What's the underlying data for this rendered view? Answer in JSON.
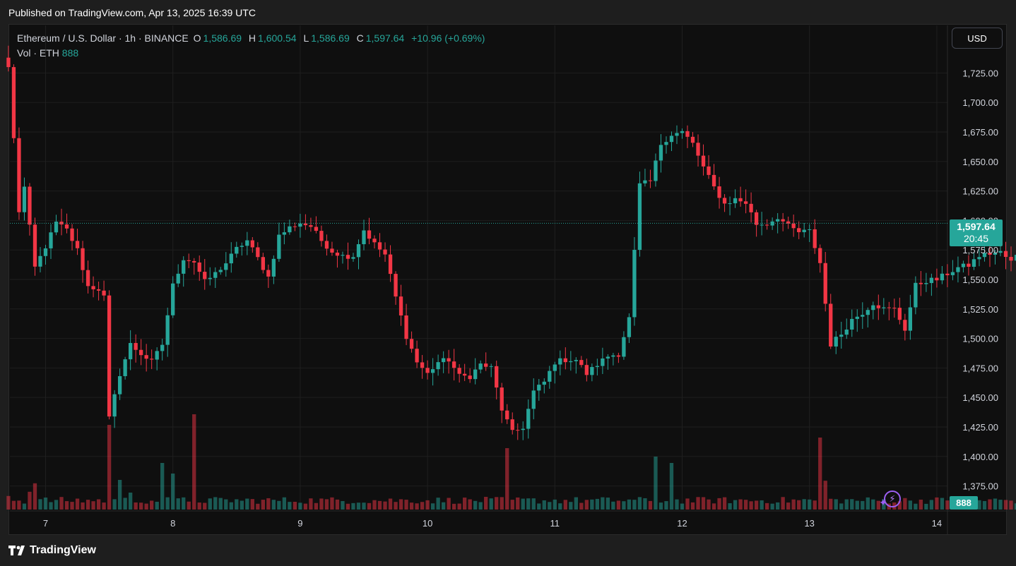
{
  "header": {
    "published": "Published on TradingView.com, Apr 13, 2025 16:39 UTC"
  },
  "legend": {
    "symbol": "Ethereum / U.S. Dollar · 1h · BINANCE",
    "o_label": "O",
    "o_value": "1,586.69",
    "h_label": "H",
    "h_value": "1,600.54",
    "l_label": "L",
    "l_value": "1,586.69",
    "c_label": "C",
    "c_value": "1,597.64",
    "change": "+10.96 (+0.69%)",
    "vol_label": "Vol · ETH",
    "vol_value": "888"
  },
  "currency_button": "USD",
  "price_badge": {
    "price": "1,597.64",
    "countdown": "20:45"
  },
  "volume_badge": "888",
  "footer": {
    "brand": "TradingView"
  },
  "colors": {
    "up": "#26a69a",
    "down": "#f23645",
    "bg": "#0f0f0f",
    "grid": "#1f1f1f"
  },
  "chart_data": {
    "type": "candlestick",
    "y_ticks": [
      "1,725.00",
      "1,700.00",
      "1,675.00",
      "1,650.00",
      "1,625.00",
      "1,600.00",
      "1,575.00",
      "1,550.00",
      "1,525.00",
      "1,500.00",
      "1,475.00",
      "1,450.00",
      "1,425.00",
      "1,400.00",
      "1,375.00"
    ],
    "x_ticks": [
      "7",
      "8",
      "9",
      "10",
      "11",
      "12",
      "13",
      "14"
    ],
    "ylim": [
      1355,
      1745
    ],
    "last_price": 1597.64,
    "anchors": [
      [
        0,
        1730
      ],
      [
        2,
        1608
      ],
      [
        3,
        1628
      ],
      [
        5,
        1560
      ],
      [
        7,
        1578
      ],
      [
        9,
        1598
      ],
      [
        11,
        1592
      ],
      [
        13,
        1575
      ],
      [
        15,
        1544
      ],
      [
        17,
        1542
      ],
      [
        18,
        1535
      ],
      [
        19,
        1432
      ],
      [
        21,
        1470
      ],
      [
        23,
        1495
      ],
      [
        25,
        1487
      ],
      [
        27,
        1480
      ],
      [
        29,
        1495
      ],
      [
        31,
        1545
      ],
      [
        33,
        1568
      ],
      [
        35,
        1565
      ],
      [
        37,
        1548
      ],
      [
        39,
        1555
      ],
      [
        41,
        1564
      ],
      [
        43,
        1576
      ],
      [
        45,
        1583
      ],
      [
        47,
        1568
      ],
      [
        49,
        1552
      ],
      [
        51,
        1587
      ],
      [
        53,
        1594
      ],
      [
        55,
        1598
      ],
      [
        57,
        1595
      ],
      [
        59,
        1583
      ],
      [
        61,
        1574
      ],
      [
        63,
        1570
      ],
      [
        65,
        1570
      ],
      [
        67,
        1592
      ],
      [
        69,
        1580
      ],
      [
        71,
        1571
      ],
      [
        73,
        1535
      ],
      [
        75,
        1502
      ],
      [
        77,
        1480
      ],
      [
        79,
        1470
      ],
      [
        81,
        1480
      ],
      [
        83,
        1482
      ],
      [
        85,
        1468
      ],
      [
        87,
        1468
      ],
      [
        89,
        1478
      ],
      [
        91,
        1475
      ],
      [
        93,
        1440
      ],
      [
        95,
        1420
      ],
      [
        97,
        1425
      ],
      [
        99,
        1455
      ],
      [
        101,
        1463
      ],
      [
        103,
        1480
      ],
      [
        105,
        1482
      ],
      [
        107,
        1482
      ],
      [
        109,
        1470
      ],
      [
        111,
        1478
      ],
      [
        113,
        1485
      ],
      [
        115,
        1487
      ],
      [
        117,
        1517
      ],
      [
        119,
        1630
      ],
      [
        121,
        1633
      ],
      [
        123,
        1665
      ],
      [
        125,
        1673
      ],
      [
        127,
        1675
      ],
      [
        129,
        1665
      ],
      [
        131,
        1645
      ],
      [
        133,
        1628
      ],
      [
        135,
        1614
      ],
      [
        137,
        1618
      ],
      [
        139,
        1615
      ],
      [
        141,
        1597
      ],
      [
        143,
        1597
      ],
      [
        145,
        1603
      ],
      [
        147,
        1595
      ],
      [
        149,
        1590
      ],
      [
        151,
        1591
      ],
      [
        153,
        1564
      ],
      [
        155,
        1495
      ],
      [
        157,
        1504
      ],
      [
        159,
        1516
      ],
      [
        161,
        1522
      ],
      [
        163,
        1530
      ],
      [
        165,
        1525
      ],
      [
        167,
        1525
      ],
      [
        169,
        1508
      ],
      [
        171,
        1545
      ],
      [
        173,
        1549
      ],
      [
        175,
        1550
      ],
      [
        177,
        1555
      ],
      [
        179,
        1560
      ],
      [
        181,
        1562
      ],
      [
        183,
        1570
      ],
      [
        185,
        1572
      ],
      [
        187,
        1573
      ],
      [
        189,
        1565
      ],
      [
        191,
        1575
      ],
      [
        193,
        1575
      ],
      [
        195,
        1575
      ],
      [
        197,
        1583
      ],
      [
        199,
        1570
      ],
      [
        201,
        1568
      ],
      [
        203,
        1577
      ],
      [
        205,
        1573
      ],
      [
        207,
        1577
      ],
      [
        209,
        1569
      ],
      [
        211,
        1565
      ],
      [
        213,
        1553
      ],
      [
        215,
        1548
      ],
      [
        217,
        1568
      ],
      [
        219,
        1575
      ],
      [
        221,
        1585
      ],
      [
        223,
        1592
      ],
      [
        225,
        1600
      ],
      [
        227,
        1596
      ],
      [
        229,
        1600
      ],
      [
        231,
        1611
      ],
      [
        233,
        1640
      ],
      [
        235,
        1650
      ],
      [
        237,
        1638
      ],
      [
        239,
        1638
      ],
      [
        241,
        1648
      ],
      [
        243,
        1650
      ],
      [
        245,
        1651
      ],
      [
        247,
        1648
      ],
      [
        249,
        1640
      ],
      [
        251,
        1618
      ],
      [
        253,
        1620
      ],
      [
        255,
        1608
      ],
      [
        257,
        1612
      ],
      [
        259,
        1618
      ],
      [
        261,
        1620
      ],
      [
        263,
        1618
      ],
      [
        265,
        1600
      ],
      [
        267,
        1578
      ],
      [
        269,
        1590
      ],
      [
        271,
        1596
      ],
      [
        272,
        1597.64
      ]
    ],
    "volume_spikes": [
      [
        0,
        32
      ],
      [
        4,
        42
      ],
      [
        5,
        62
      ],
      [
        19,
        200
      ],
      [
        21,
        70
      ],
      [
        23,
        40
      ],
      [
        29,
        110
      ],
      [
        31,
        85
      ],
      [
        35,
        225
      ],
      [
        94,
        145
      ],
      [
        122,
        125
      ],
      [
        125,
        110
      ],
      [
        153,
        170
      ],
      [
        154,
        68
      ],
      [
        230,
        22
      ],
      [
        233,
        50
      ],
      [
        234,
        50
      ],
      [
        270,
        30
      ]
    ],
    "volume_base": 8
  }
}
